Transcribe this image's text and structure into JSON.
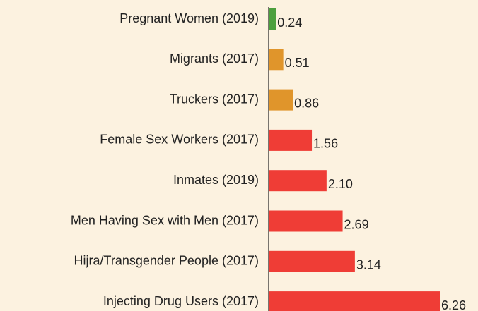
{
  "chart_data": {
    "type": "bar",
    "orientation": "horizontal",
    "categories": [
      "Pregnant Women (2019)",
      "Migrants (2017)",
      "Truckers (2017)",
      "Female Sex Workers (2017)",
      "Inmates (2019)",
      "Men Having Sex with Men (2017)",
      "Hijra/Transgender People (2017)",
      "Injecting Drug Users (2017)"
    ],
    "values": [
      0.24,
      0.51,
      0.86,
      1.56,
      2.1,
      2.69,
      3.14,
      6.26
    ],
    "value_labels": [
      "0.24",
      "0.51",
      "0.86",
      "1.56",
      "2.10",
      "2.69",
      "3.14",
      "6.26"
    ],
    "colors": [
      "#4c9f3e",
      "#e0952b",
      "#e0952b",
      "#ef3d36",
      "#ef3d36",
      "#ef3d36",
      "#ef3d36",
      "#ef3d36"
    ]
  }
}
